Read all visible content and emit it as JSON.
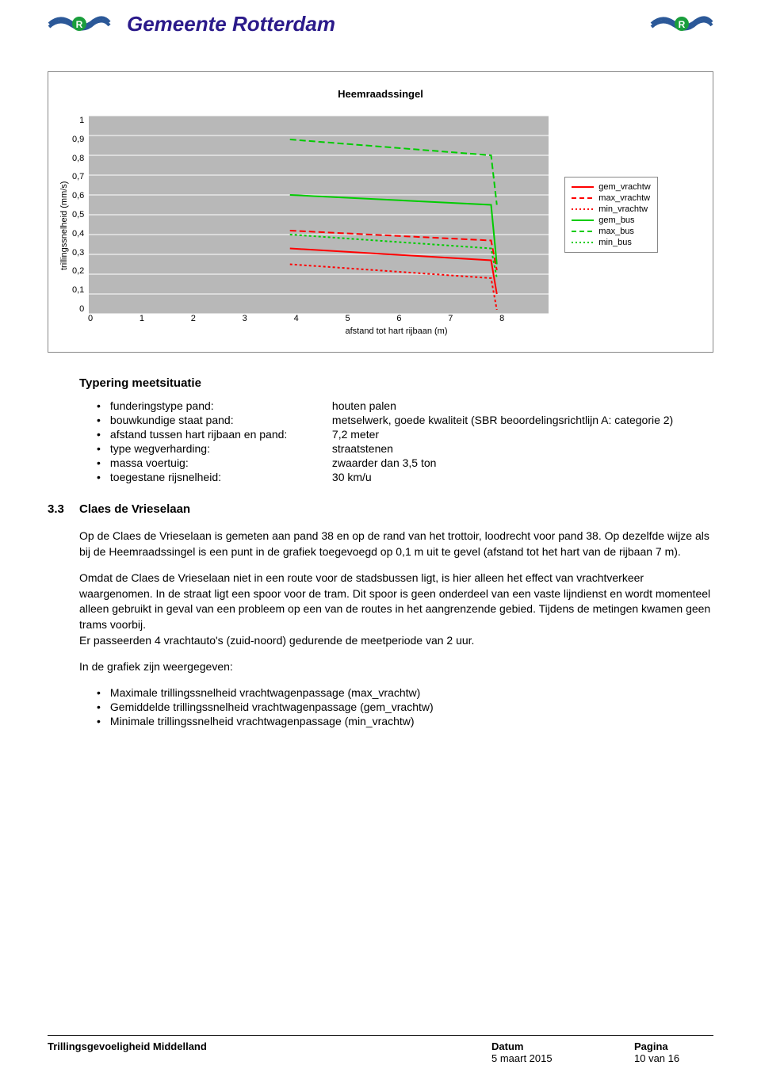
{
  "header": {
    "title": "Gemeente Rotterdam"
  },
  "chart": {
    "type": "line",
    "title": "Heemraadssingel",
    "ylabel": "trillingssnelheid (mm/s)",
    "xlabel": "afstand tot hart rijbaan (m)",
    "xlim": [
      0,
      8
    ],
    "ylim": [
      0,
      1
    ],
    "ytick_step": 0.1,
    "xtick_step": 1,
    "yticks": [
      "1",
      "0,9",
      "0,8",
      "0,7",
      "0,6",
      "0,5",
      "0,4",
      "0,3",
      "0,2",
      "0,1",
      "0"
    ],
    "xticks": [
      "0",
      "1",
      "2",
      "3",
      "4",
      "5",
      "6",
      "7",
      "8"
    ],
    "plot_bg": "#b8b8b8",
    "grid_color": "#ffffff",
    "series": [
      {
        "name": "gem_vrachtw",
        "color": "#ff0000",
        "dash": "none",
        "points": [
          [
            3.5,
            0.33
          ],
          [
            7,
            0.27
          ],
          [
            7.1,
            0.1
          ]
        ]
      },
      {
        "name": "max_vrachtw",
        "color": "#ff0000",
        "dash": "8,4",
        "points": [
          [
            3.5,
            0.42
          ],
          [
            7,
            0.37
          ],
          [
            7.1,
            0.22
          ]
        ]
      },
      {
        "name": "min_vrachtw",
        "color": "#ff0000",
        "dash": "3,3",
        "points": [
          [
            3.5,
            0.25
          ],
          [
            7,
            0.18
          ],
          [
            7.1,
            0.02
          ]
        ]
      },
      {
        "name": "gem_bus",
        "color": "#00cc00",
        "dash": "none",
        "points": [
          [
            3.5,
            0.6
          ],
          [
            7,
            0.55
          ],
          [
            7.1,
            0.25
          ]
        ]
      },
      {
        "name": "max_bus",
        "color": "#00cc00",
        "dash": "8,4",
        "points": [
          [
            3.5,
            0.88
          ],
          [
            7,
            0.8
          ],
          [
            7.1,
            0.55
          ]
        ]
      },
      {
        "name": "min_bus",
        "color": "#00cc00",
        "dash": "3,3",
        "points": [
          [
            3.5,
            0.4
          ],
          [
            7,
            0.33
          ],
          [
            7.1,
            0.18
          ]
        ]
      }
    ],
    "legend": [
      {
        "label": "gem_vrachtw",
        "color": "#ff0000",
        "dash": "none"
      },
      {
        "label": "max_vrachtw",
        "color": "#ff0000",
        "dash": "dashed"
      },
      {
        "label": "min_vrachtw",
        "color": "#ff0000",
        "dash": "dotted"
      },
      {
        "label": "gem_bus",
        "color": "#00cc00",
        "dash": "none"
      },
      {
        "label": "max_bus",
        "color": "#00cc00",
        "dash": "dashed"
      },
      {
        "label": "min_bus",
        "color": "#00cc00",
        "dash": "dotted"
      }
    ]
  },
  "typering": {
    "heading": "Typering meetsituatie",
    "items": [
      {
        "key": "funderingstype pand:",
        "val": "houten palen"
      },
      {
        "key": "bouwkundige staat pand:",
        "val": "metselwerk, goede kwaliteit (SBR beoordelingsrichtlijn A: categorie 2)"
      },
      {
        "key": "afstand tussen hart rijbaan en pand:",
        "val": "7,2 meter"
      },
      {
        "key": "type wegverharding:",
        "val": "straatstenen"
      },
      {
        "key": "massa voertuig:",
        "val": "zwaarder dan 3,5 ton"
      },
      {
        "key": "toegestane rijsnelheid:",
        "val": "30 km/u"
      }
    ]
  },
  "subsection": {
    "num": "3.3",
    "title": "Claes de Vrieselaan"
  },
  "para1": "Op de Claes de Vrieselaan is gemeten aan pand 38 en op de rand van het trottoir, loodrecht voor pand 38. Op dezelfde wijze als bij de Heemraadssingel is een punt in de grafiek toegevoegd op 0,1 m uit te gevel (afstand tot het hart van de rijbaan 7 m).",
  "para2": "Omdat de Claes de Vrieselaan niet in een route voor de stadsbussen ligt, is hier alleen het effect van vrachtverkeer waargenomen. In de straat ligt een spoor voor de tram. Dit spoor is geen onderdeel van een vaste lijndienst en wordt momenteel alleen gebruikt in geval van een probleem op een van de routes in het aangrenzende gebied. Tijdens de metingen kwamen geen trams voorbij.",
  "para3": "Er passeerden 4 vrachtauto's (zuid-noord) gedurende de meetperiode van 2 uur.",
  "para4": "In de grafiek zijn weergegeven:",
  "list2": [
    "Maximale trillingssnelheid vrachtwagenpassage (max_vrachtw)",
    "Gemiddelde trillingssnelheid vrachtwagenpassage (gem_vrachtw)",
    "Minimale trillingssnelheid vrachtwagenpassage (min_vrachtw)"
  ],
  "footer": {
    "doc": "Trillingsgevoeligheid Middelland",
    "date_label": "Datum",
    "date": "5 maart 2015",
    "page_label": "Pagina",
    "page": "10 van 16"
  }
}
